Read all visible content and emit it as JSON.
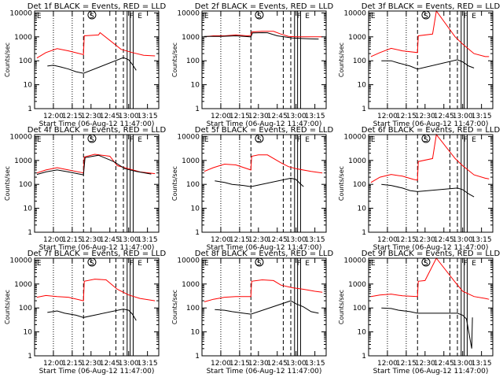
{
  "colors": {
    "events": "#000000",
    "lld": "#ff0000",
    "axis": "#000000",
    "background": "#ffffff"
  },
  "chart_data": {
    "type": "line",
    "yscale": "log",
    "ylim": [
      1,
      12000
    ],
    "xlim": [
      11.75,
      13.4
    ],
    "y_tick_labels": [
      "1",
      "10",
      "100",
      "1000",
      "10000"
    ],
    "y_tick_values": [
      1,
      10,
      100,
      1000,
      10000
    ],
    "x_tick_labels": [
      "12:00",
      "12:15",
      "12:30",
      "12:45",
      "13:00",
      "13:15"
    ],
    "x_tick_values": [
      12.0,
      12.25,
      12.5,
      12.75,
      13.0,
      13.25
    ],
    "ylabel": "Counts/sec",
    "xlabel": "Start Time (06-Aug-12 11:47:00)",
    "title_suffix": " BLACK = Events, RED = LLD",
    "dotted_lines_x": [
      12.0,
      12.25
    ],
    "dashed_lines_x": [
      12.4,
      12.83,
      12.93
    ],
    "solid_lines_x": [
      12.98,
      13.02,
      13.06
    ],
    "markers": [
      {
        "label": "E",
        "x": 11.77
      },
      {
        "label": "S",
        "x": 12.47,
        "circled": true
      },
      {
        "label": "F",
        "x": 13.0
      },
      {
        "label": "E",
        "x": 13.11
      }
    ],
    "panels": [
      {
        "title": "Det 1f",
        "lld": [
          [
            11.78,
            130
          ],
          [
            11.9,
            220
          ],
          [
            12.05,
            320
          ],
          [
            12.2,
            260
          ],
          [
            12.4,
            180
          ],
          [
            12.41,
            1100
          ],
          [
            12.6,
            1200
          ],
          [
            12.62,
            1500
          ],
          [
            12.9,
            300
          ],
          [
            13.05,
            220
          ],
          [
            13.2,
            170
          ],
          [
            13.35,
            160
          ]
        ],
        "events": [
          [
            11.92,
            60
          ],
          [
            12.0,
            65
          ],
          [
            12.1,
            55
          ],
          [
            12.2,
            45
          ],
          [
            12.3,
            35
          ],
          [
            12.4,
            30
          ],
          [
            12.93,
            135
          ],
          [
            13.0,
            110
          ],
          [
            13.05,
            70
          ],
          [
            13.1,
            40
          ]
        ]
      },
      {
        "title": "Det 2f",
        "lld": [
          [
            11.78,
            1000
          ],
          [
            11.9,
            1100
          ],
          [
            12.05,
            1100
          ],
          [
            12.2,
            1200
          ],
          [
            12.35,
            1100
          ],
          [
            12.4,
            1150
          ],
          [
            12.41,
            1600
          ],
          [
            12.55,
            1700
          ],
          [
            12.7,
            1700
          ],
          [
            12.8,
            1300
          ],
          [
            12.9,
            1050
          ],
          [
            13.0,
            1000
          ],
          [
            13.2,
            1000
          ],
          [
            13.35,
            1000
          ]
        ],
        "events": [
          [
            11.78,
            1050
          ],
          [
            12.0,
            1050
          ],
          [
            12.2,
            1100
          ],
          [
            12.4,
            1000
          ],
          [
            12.42,
            1450
          ],
          [
            12.55,
            1500
          ],
          [
            12.62,
            1480
          ],
          [
            12.75,
            1100
          ],
          [
            12.95,
            900
          ],
          [
            13.1,
            850
          ],
          [
            13.2,
            820
          ],
          [
            13.3,
            810
          ]
        ]
      },
      {
        "title": "Det 3f",
        "lld": [
          [
            11.78,
            150
          ],
          [
            11.9,
            220
          ],
          [
            12.05,
            330
          ],
          [
            12.2,
            260
          ],
          [
            12.4,
            220
          ],
          [
            12.41,
            1100
          ],
          [
            12.6,
            1300
          ],
          [
            12.65,
            12000
          ],
          [
            12.9,
            1000
          ],
          [
            13.0,
            500
          ],
          [
            13.15,
            200
          ],
          [
            13.3,
            150
          ],
          [
            13.35,
            150
          ]
        ],
        "events": [
          [
            11.92,
            100
          ],
          [
            12.05,
            100
          ],
          [
            12.15,
            80
          ],
          [
            12.3,
            60
          ],
          [
            12.4,
            45
          ],
          [
            12.93,
            110
          ],
          [
            13.0,
            90
          ],
          [
            13.08,
            60
          ],
          [
            13.15,
            50
          ]
        ]
      },
      {
        "title": "Det 4f",
        "lld": [
          [
            11.78,
            300
          ],
          [
            11.9,
            400
          ],
          [
            12.05,
            500
          ],
          [
            12.2,
            400
          ],
          [
            12.4,
            300
          ],
          [
            12.41,
            1400
          ],
          [
            12.55,
            1800
          ],
          [
            12.75,
            1500
          ],
          [
            12.85,
            600
          ],
          [
            13.0,
            450
          ],
          [
            13.15,
            330
          ],
          [
            13.35,
            280
          ]
        ],
        "events": [
          [
            11.78,
            260
          ],
          [
            11.9,
            330
          ],
          [
            12.05,
            400
          ],
          [
            12.2,
            330
          ],
          [
            12.4,
            250
          ],
          [
            12.42,
            1300
          ],
          [
            12.6,
            1650
          ],
          [
            12.8,
            900
          ],
          [
            12.95,
            450
          ],
          [
            13.1,
            350
          ],
          [
            13.3,
            270
          ]
        ]
      },
      {
        "title": "Det 5f",
        "lld": [
          [
            11.78,
            350
          ],
          [
            11.9,
            500
          ],
          [
            12.05,
            700
          ],
          [
            12.2,
            650
          ],
          [
            12.4,
            400
          ],
          [
            12.41,
            1500
          ],
          [
            12.5,
            1700
          ],
          [
            12.62,
            1700
          ],
          [
            12.8,
            800
          ],
          [
            12.9,
            550
          ],
          [
            13.0,
            450
          ],
          [
            13.2,
            350
          ],
          [
            13.35,
            300
          ]
        ],
        "events": [
          [
            11.92,
            140
          ],
          [
            12.05,
            120
          ],
          [
            12.15,
            100
          ],
          [
            12.3,
            90
          ],
          [
            12.4,
            80
          ],
          [
            12.93,
            180
          ],
          [
            13.0,
            160
          ],
          [
            13.05,
            110
          ],
          [
            13.1,
            80
          ]
        ]
      },
      {
        "title": "Det 6f",
        "lld": [
          [
            11.78,
            120
          ],
          [
            11.9,
            200
          ],
          [
            12.05,
            260
          ],
          [
            12.2,
            220
          ],
          [
            12.35,
            160
          ],
          [
            12.4,
            150
          ],
          [
            12.41,
            900
          ],
          [
            12.6,
            1200
          ],
          [
            12.65,
            12000
          ],
          [
            12.9,
            1200
          ],
          [
            13.0,
            600
          ],
          [
            13.15,
            250
          ],
          [
            13.3,
            180
          ],
          [
            13.35,
            170
          ]
        ],
        "events": [
          [
            11.92,
            100
          ],
          [
            12.05,
            90
          ],
          [
            12.2,
            70
          ],
          [
            12.3,
            55
          ],
          [
            12.4,
            50
          ],
          [
            12.93,
            70
          ],
          [
            13.0,
            60
          ],
          [
            13.08,
            40
          ],
          [
            13.15,
            30
          ]
        ]
      },
      {
        "title": "Det 7f",
        "lld": [
          [
            11.78,
            280
          ],
          [
            11.9,
            330
          ],
          [
            12.05,
            300
          ],
          [
            12.2,
            280
          ],
          [
            12.4,
            200
          ],
          [
            12.41,
            1300
          ],
          [
            12.55,
            1600
          ],
          [
            12.7,
            1500
          ],
          [
            12.85,
            600
          ],
          [
            13.0,
            350
          ],
          [
            13.15,
            250
          ],
          [
            13.35,
            200
          ]
        ],
        "events": [
          [
            11.92,
            65
          ],
          [
            12.05,
            75
          ],
          [
            12.15,
            60
          ],
          [
            12.3,
            50
          ],
          [
            12.4,
            40
          ],
          [
            12.93,
            90
          ],
          [
            13.0,
            80
          ],
          [
            13.05,
            55
          ],
          [
            13.1,
            30
          ]
        ]
      },
      {
        "title": "Det 8f",
        "lld": [
          [
            11.78,
            180
          ],
          [
            11.9,
            230
          ],
          [
            12.05,
            280
          ],
          [
            12.2,
            300
          ],
          [
            12.4,
            300
          ],
          [
            12.41,
            1300
          ],
          [
            12.55,
            1500
          ],
          [
            12.7,
            1400
          ],
          [
            12.8,
            900
          ],
          [
            12.95,
            700
          ],
          [
            13.1,
            600
          ],
          [
            13.25,
            500
          ],
          [
            13.35,
            450
          ]
        ],
        "events": [
          [
            11.92,
            85
          ],
          [
            12.05,
            80
          ],
          [
            12.15,
            70
          ],
          [
            12.3,
            60
          ],
          [
            12.4,
            55
          ],
          [
            12.93,
            200
          ],
          [
            13.0,
            150
          ],
          [
            13.1,
            110
          ],
          [
            13.2,
            70
          ],
          [
            13.3,
            60
          ]
        ]
      },
      {
        "title": "Det 9f",
        "lld": [
          [
            11.78,
            300
          ],
          [
            11.9,
            350
          ],
          [
            12.05,
            380
          ],
          [
            12.2,
            320
          ],
          [
            12.4,
            300
          ],
          [
            12.41,
            1300
          ],
          [
            12.5,
            1400
          ],
          [
            12.65,
            12000
          ],
          [
            12.9,
            1200
          ],
          [
            13.0,
            500
          ],
          [
            13.15,
            300
          ],
          [
            13.3,
            250
          ],
          [
            13.35,
            230
          ]
        ],
        "events": [
          [
            11.92,
            100
          ],
          [
            12.05,
            95
          ],
          [
            12.15,
            80
          ],
          [
            12.3,
            70
          ],
          [
            12.4,
            60
          ],
          [
            12.93,
            60
          ],
          [
            13.0,
            50
          ],
          [
            13.05,
            35
          ],
          [
            13.12,
            2
          ],
          [
            13.13,
            40
          ]
        ]
      }
    ]
  }
}
